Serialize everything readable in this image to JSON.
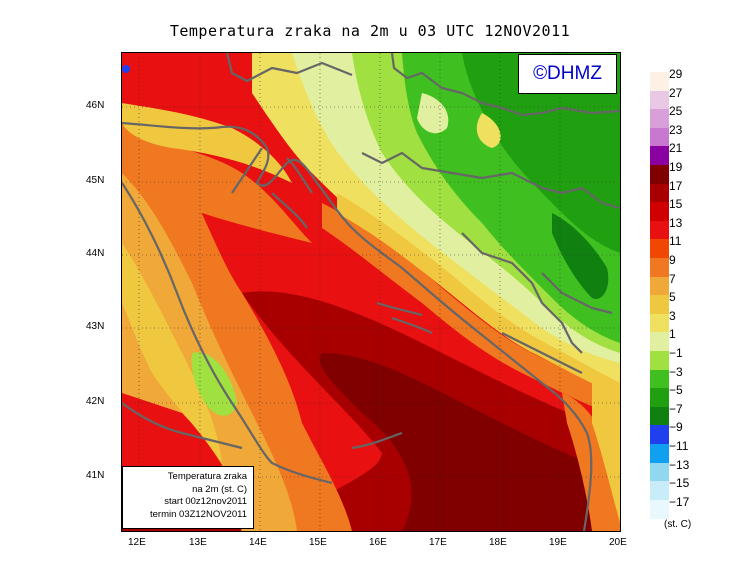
{
  "title": "Temperatura zraka na 2m u 03 UTC 12NOV2011",
  "logo": "©DHMZ",
  "info_box": {
    "line1": "Temperatura zraka",
    "line2": "na 2m (st. C)",
    "line3": "start 00z12nov2011",
    "line4": "termin 03Z12NOV2011"
  },
  "axes": {
    "lat_labels": [
      "46N",
      "45N",
      "44N",
      "43N",
      "42N",
      "41N"
    ],
    "lon_labels": [
      "12E",
      "13E",
      "14E",
      "15E",
      "16E",
      "17E",
      "18E",
      "19E",
      "20E"
    ]
  },
  "legend": {
    "units": "(st. C)",
    "labels": [
      "29",
      "27",
      "25",
      "23",
      "21",
      "19",
      "17",
      "15",
      "13",
      "11",
      "9",
      "7",
      "5",
      "3",
      "1",
      "−1",
      "−3",
      "−5",
      "−7",
      "−9",
      "−11",
      "−13",
      "−15",
      "−17"
    ],
    "colors": [
      "#fdf0e4",
      "#e8c8e4",
      "#d8a0d8",
      "#c878d0",
      "#8a00a0",
      "#800000",
      "#a80000",
      "#d00000",
      "#e81010",
      "#f04800",
      "#f07820",
      "#f0a838",
      "#f0c840",
      "#f0e060",
      "#e0f0a0",
      "#a0e040",
      "#40c020",
      "#20a010",
      "#108010",
      "#2040f0",
      "#10a0f0",
      "#90d8f0",
      "#c8ecf8",
      "#e8f8fc"
    ]
  }
}
